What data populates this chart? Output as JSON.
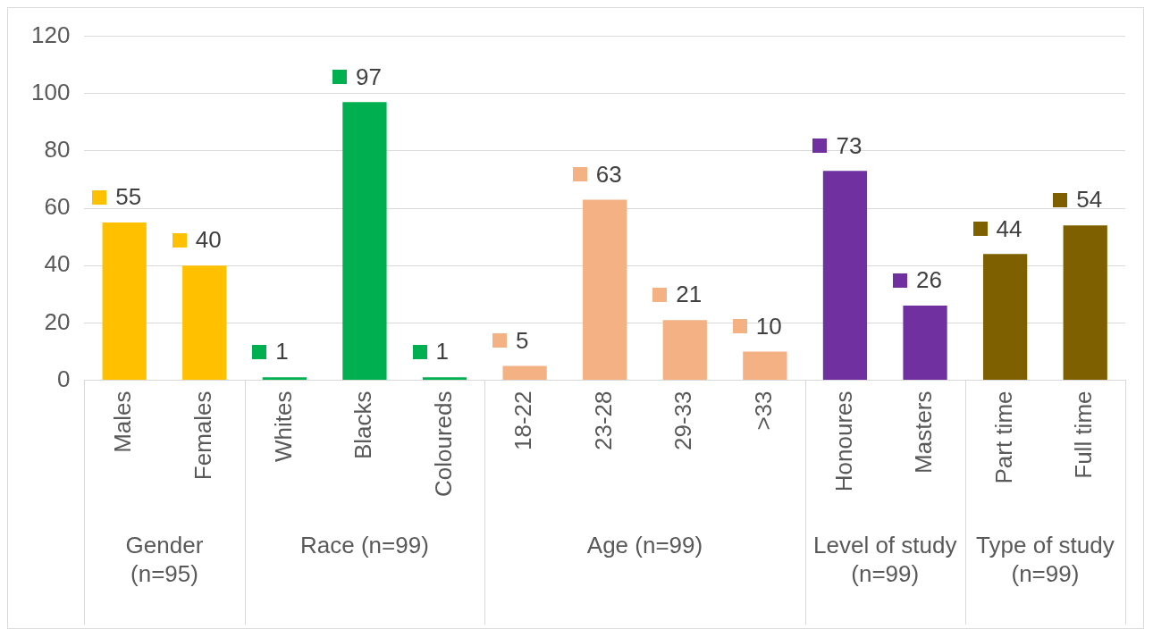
{
  "chart_data": {
    "type": "bar",
    "categories": [
      "Males",
      "Females",
      "Whites",
      "Blacks",
      "Coloureds",
      "18-22",
      "23-28",
      "29-33",
      ">33",
      "Honoures",
      "Masters",
      "Part time",
      "Full time"
    ],
    "values": [
      55,
      40,
      1,
      97,
      1,
      5,
      63,
      21,
      10,
      73,
      26,
      44,
      54
    ],
    "colors": [
      "#ffc000",
      "#ffc000",
      "#00b050",
      "#00b050",
      "#00b050",
      "#f4b183",
      "#f4b183",
      "#f4b183",
      "#f4b183",
      "#7030a0",
      "#7030a0",
      "#7f6000",
      "#7f6000"
    ],
    "ylim": [
      0,
      120
    ],
    "yticks": [
      0,
      20,
      40,
      60,
      80,
      100,
      120
    ],
    "grid": "y",
    "legend": false,
    "data_labels": true,
    "annotations": [
      "Gender (n=95)",
      "Race (n=99)",
      "Age (n=99)",
      "Level of study (n=99)",
      "Type of study (n=99)"
    ]
  }
}
